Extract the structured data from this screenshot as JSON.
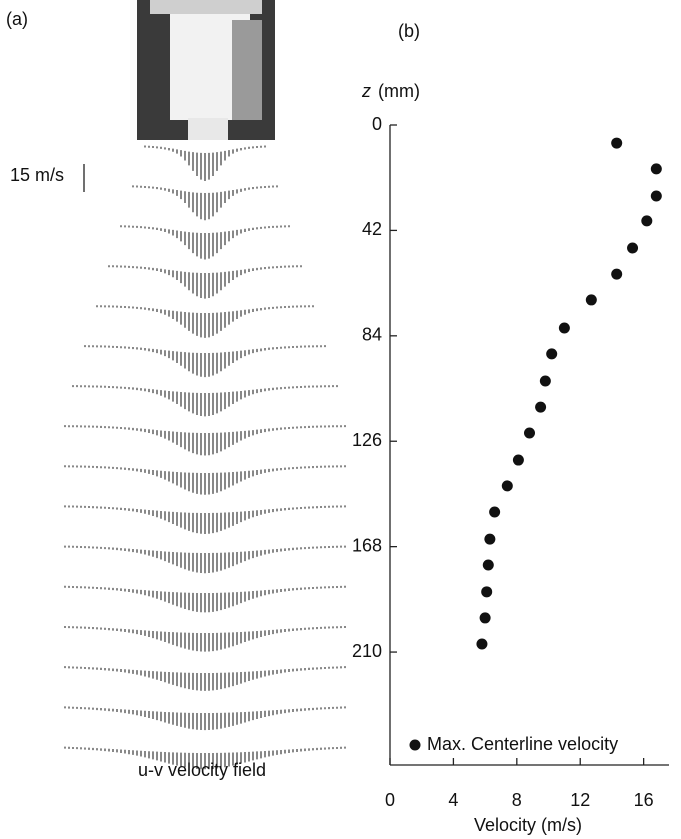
{
  "panel_a": {
    "label": "(a)",
    "scale_label": "15 m/s",
    "caption": "u-v velocity field"
  },
  "chart_data": {
    "type": "scatter",
    "panel_label": "(b)",
    "x_label": "Velocity (m/s)",
    "y_label_var": "z",
    "y_label_unit": "(mm)",
    "xlim": [
      0,
      17.6
    ],
    "xticks": [
      0,
      4,
      8,
      12,
      16
    ],
    "ylim": [
      0,
      255
    ],
    "yticks": [
      0,
      42,
      84,
      126,
      168,
      210
    ],
    "y_inverted": true,
    "series": [
      {
        "name": "Max. Centerline velocity",
        "color": "#111111",
        "x": [
          14.3,
          16.8,
          16.8,
          16.2,
          15.3,
          14.3,
          12.7,
          11.0,
          10.2,
          9.8,
          9.5,
          8.8,
          8.1,
          7.4,
          6.6,
          6.3,
          6.2,
          6.1,
          6.0,
          5.8
        ],
        "values": [
          7.2,
          17.5,
          28.3,
          38.2,
          49,
          59.4,
          69.7,
          80.9,
          91.2,
          102,
          112.4,
          122.7,
          133.5,
          143.8,
          154.2,
          165,
          175.3,
          186,
          196.4,
          206.8
        ]
      }
    ],
    "legend": "bottom-left"
  }
}
